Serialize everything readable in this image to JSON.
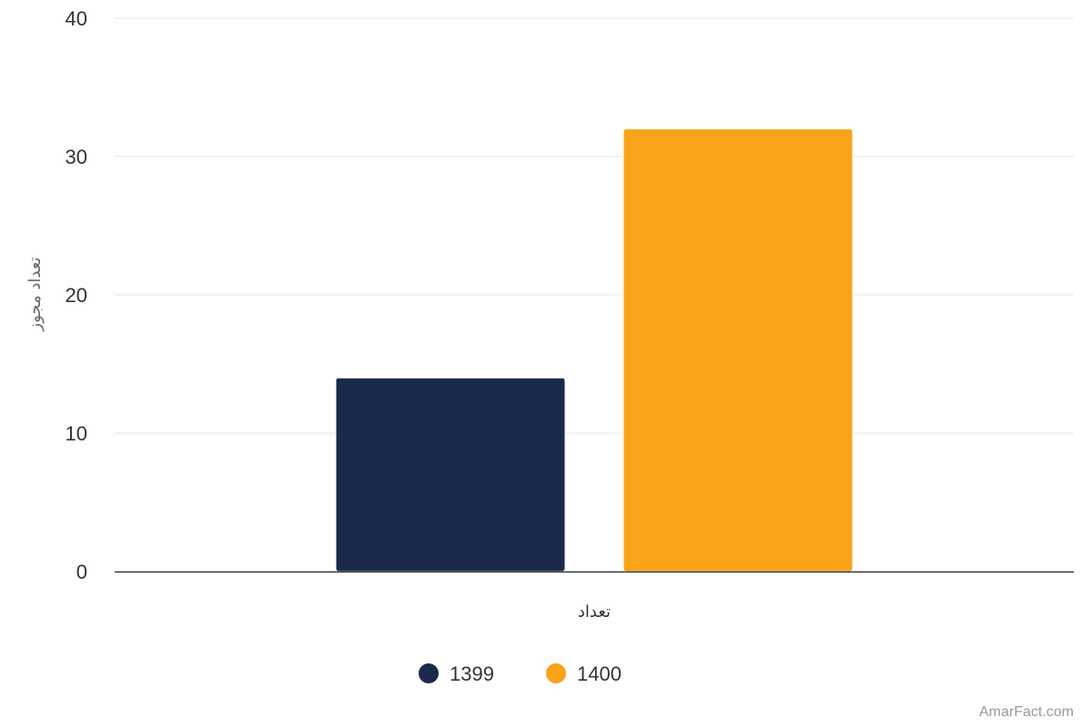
{
  "chart_data": {
    "type": "bar",
    "categories": [
      "تعداد"
    ],
    "series": [
      {
        "name": "1399",
        "values": [
          14
        ],
        "color": "#1b2a4c"
      },
      {
        "name": "1400",
        "values": [
          32
        ],
        "color": "#f9a318"
      }
    ],
    "ylabel": "تعداد مجوز",
    "xlabel": "",
    "ylim": [
      0,
      40
    ],
    "yticks": [
      0,
      10,
      20,
      30,
      40
    ],
    "grid": true,
    "legend_position": "bottom-center"
  },
  "credit": "AmarFact.com"
}
